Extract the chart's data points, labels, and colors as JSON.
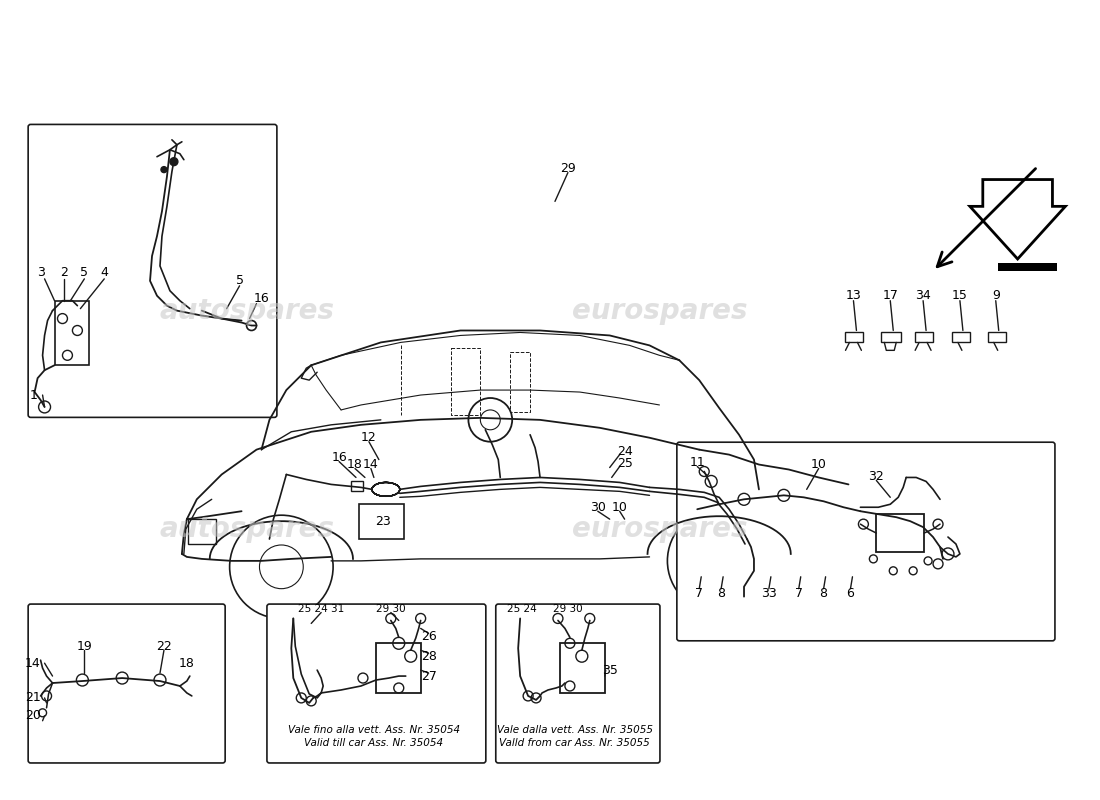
{
  "bg_color": "#ffffff",
  "fig_width": 11.0,
  "fig_height": 8.0,
  "line_color": "#1a1a1a",
  "text_color": "#000000",
  "watermark_color": "#c8c8c8",
  "caption_box1_line1": "Vale fino alla vett. Ass. Nr. 35054",
  "caption_box1_line2": "Valid till car Ass. Nr. 35054",
  "caption_box2_line1": "Vale dalla vett. Ass. Nr. 35055",
  "caption_box2_line2": "Valld from car Ass. Nr. 35055"
}
